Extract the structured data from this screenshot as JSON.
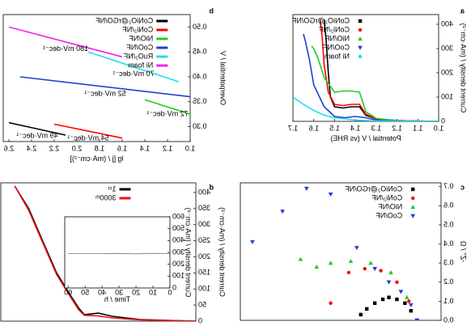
{
  "chart_data": [
    {
      "type": "line",
      "panel_label": "a",
      "xlabel": "Potential / V (vs RHE)",
      "ylabel": "Current density / (mA·cm⁻²)",
      "xlim": [
        1.0,
        1.7
      ],
      "xticks": [
        {
          "value": 1.0,
          "label": "1.0"
        },
        1.1,
        1.2,
        1.3,
        1.4,
        1.5,
        1.6,
        1.7
      ],
      "ylim": [
        0,
        440
      ],
      "yticks": [
        0,
        100,
        200,
        300,
        400
      ],
      "legend": "upper right",
      "series": [
        {
          "name": "CoNiO₂@rGO/NF",
          "color": "#000000",
          "marker": "square",
          "x": [
            1.0,
            1.2,
            1.3,
            1.35,
            1.38,
            1.42,
            1.46,
            1.5,
            1.52,
            1.53,
            1.54,
            1.55
          ],
          "values": [
            0,
            3,
            10,
            25,
            60,
            60,
            55,
            60,
            100,
            200,
            330,
            420
          ]
        },
        {
          "name": "CoNi₂/NF",
          "color": "#ff0000",
          "marker": "circle",
          "x": [
            1.0,
            1.2,
            1.3,
            1.35,
            1.38,
            1.42,
            1.46,
            1.5,
            1.53,
            1.55,
            1.56,
            1.57
          ],
          "values": [
            0,
            3,
            10,
            30,
            70,
            70,
            65,
            70,
            120,
            230,
            350,
            420
          ]
        },
        {
          "name": "NiO/NF",
          "color": "#22cc22",
          "marker": "triangle-up",
          "x": [
            1.0,
            1.2,
            1.3,
            1.35,
            1.38,
            1.42,
            1.46,
            1.5,
            1.55,
            1.58,
            1.6,
            1.61
          ],
          "values": [
            0,
            3,
            12,
            40,
            120,
            125,
            125,
            120,
            180,
            260,
            300,
            310
          ]
        },
        {
          "name": "CoO/NF",
          "color": "#1f3fd6",
          "marker": "triangle-down",
          "x": [
            1.0,
            1.2,
            1.3,
            1.35,
            1.4,
            1.45,
            1.5,
            1.55,
            1.6,
            1.62,
            1.64,
            1.65
          ],
          "values": [
            0,
            2,
            5,
            15,
            20,
            15,
            20,
            60,
            150,
            250,
            330,
            360
          ]
        },
        {
          "name": "Ni foam",
          "color": "#22ddee",
          "marker": "circle",
          "x": [
            1.0,
            1.3,
            1.4,
            1.5,
            1.55,
            1.6,
            1.65,
            1.7
          ],
          "values": [
            0,
            2,
            5,
            15,
            25,
            45,
            70,
            100
          ]
        }
      ]
    },
    {
      "type": "line",
      "panel_label": "b",
      "xlabel": "lg [j / (mA·cm⁻²)]",
      "ylabel": "Overpotential / V",
      "xlim": [
        1.0,
        2.65
      ],
      "xticks": [
        {
          "value": 1.0,
          "label": "1.0"
        },
        1.2,
        1.4,
        1.6,
        1.8,
        {
          "value": 2.0,
          "label": "2.0"
        },
        2.2,
        2.4,
        2.6
      ],
      "ylim": [
        0.27,
        0.525
      ],
      "yticks": [
        {
          "value": 0.3,
          "label": "0.30"
        },
        0.35,
        {
          "value": 0.4,
          "label": "0.40"
        },
        0.45,
        {
          "value": 0.5,
          "label": "0.50"
        }
      ],
      "legend": "upper left",
      "series": [
        {
          "name": "CoNiO₂@rGO/NF",
          "color": "#000000",
          "label": "49 mV·dec⁻¹",
          "x": [
            2.1,
            2.6
          ],
          "values": [
            0.283,
            0.308
          ]
        },
        {
          "name": "CoNi₂/NF",
          "color": "#ff0000",
          "label": "54 mV·dec⁻¹",
          "x": [
            1.6,
            2.2
          ],
          "values": [
            0.277,
            0.305
          ]
        },
        {
          "name": "NiO/NF",
          "color": "#22cc22",
          "label": "72 mV·dec⁻¹",
          "x": [
            1.0,
            1.4
          ],
          "values": [
            0.325,
            0.354
          ]
        },
        {
          "name": "CoO/NF",
          "color": "#1f3fd6",
          "label": "52 mV·dec⁻¹",
          "x": [
            1.0,
            2.5
          ],
          "values": [
            0.36,
            0.4
          ]
        },
        {
          "name": "RuO₂/NF",
          "color": "#22ddee",
          "label": "70 mV·dec⁻¹",
          "x": [
            1.1,
            1.9
          ],
          "values": [
            0.39,
            0.45
          ]
        },
        {
          "name": "Ni foam",
          "color": "#ee22ee",
          "label": "180 mV·dec⁻¹",
          "x": [
            1.6,
            2.6
          ],
          "values": [
            0.44,
            0.5
          ]
        }
      ]
    },
    {
      "type": "scatter",
      "panel_label": "c",
      "ylabel": "-Z'' / Ω",
      "xlim": [
        0,
        1.0
      ],
      "ylim": [
        0,
        0.72
      ],
      "yticks": [
        {
          "value": 0.0,
          "label": "0.0"
        },
        0.1,
        0.2,
        0.3,
        0.4,
        0.5,
        0.6,
        0.7
      ],
      "legend": "upper left",
      "series": [
        {
          "name": "CoNiO₂@rGO/NF",
          "color": "#000000",
          "marker": "square",
          "x": [
            0.12,
            0.15,
            0.18,
            0.22,
            0.26,
            0.29,
            0.33,
            0.37,
            0.4
          ],
          "values": [
            0.0,
            0.05,
            0.09,
            0.11,
            0.12,
            0.11,
            0.09,
            0.06,
            0.03
          ]
        },
        {
          "name": "CoNi₂/NF",
          "color": "#ff0000",
          "marker": "circle",
          "x": [
            0.12,
            0.16,
            0.22,
            0.3,
            0.38,
            0.46,
            0.55
          ],
          "values": [
            0.0,
            0.1,
            0.2,
            0.26,
            0.27,
            0.25,
            0.09
          ]
        },
        {
          "name": "NiO/NF",
          "color": "#22cc22",
          "marker": "triangle-up",
          "x": [
            0.12,
            0.17,
            0.25,
            0.35,
            0.45,
            0.55,
            0.62,
            0.7
          ],
          "values": [
            0.0,
            0.12,
            0.25,
            0.3,
            0.31,
            0.3,
            0.28,
            0.32
          ]
        },
        {
          "name": "CoO/NF",
          "color": "#1f3fd6",
          "marker": "triangle-down",
          "x": [
            0.12,
            0.15,
            0.2,
            0.26,
            0.33,
            0.42,
            0.55,
            0.67,
            0.79,
            0.94
          ],
          "values": [
            0.0,
            0.08,
            0.15,
            0.2,
            0.27,
            0.38,
            0.66,
            0.69,
            0.57,
            0.41
          ]
        }
      ]
    },
    {
      "type": "line",
      "panel_label": "d",
      "ylabel": "Current density / (mA·cm⁻²)",
      "xlim": [
        1.0,
        1.7
      ],
      "ylim": [
        0,
        430
      ],
      "yticks": [
        0,
        50,
        100,
        150,
        200,
        250,
        300,
        350,
        400
      ],
      "legend": "upper center",
      "series": [
        {
          "name": "1ˢᵗ",
          "color": "#000000",
          "x": [
            1.0,
            1.2,
            1.3,
            1.35,
            1.4,
            1.42,
            1.45,
            1.5,
            1.55,
            1.6,
            1.65
          ],
          "values": [
            0,
            5,
            15,
            25,
            20,
            40,
            80,
            150,
            250,
            350,
            420
          ]
        },
        {
          "name": "3000ᵗʰ",
          "color": "#ee1111",
          "x": [
            1.0,
            1.2,
            1.3,
            1.35,
            1.4,
            1.42,
            1.45,
            1.5,
            1.55,
            1.6,
            1.65
          ],
          "values": [
            0,
            4,
            10,
            16,
            18,
            35,
            75,
            145,
            245,
            345,
            420
          ]
        }
      ]
    },
    {
      "type": "line",
      "xlabel": "Time / h",
      "ylabel": "Current density / (mA·cm⁻²)",
      "xlim": [
        0,
        62
      ],
      "xticks": [
        0,
        10,
        20,
        30,
        40,
        50,
        60
      ],
      "ylim": [
        0,
        600
      ],
      "yticks": [
        0,
        100,
        200,
        300,
        400,
        500,
        600
      ],
      "series": [
        {
          "color": "#777777",
          "x": [
            0,
            10,
            20,
            30,
            40,
            50,
            60
          ],
          "values": [
            290,
            292,
            288,
            291,
            290,
            289,
            290
          ]
        }
      ]
    }
  ]
}
